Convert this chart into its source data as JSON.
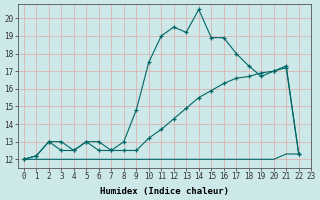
{
  "xlabel": "Humidex (Indice chaleur)",
  "bg_color": "#cde8e8",
  "line_color": "#006666",
  "grid_color": "#ddaaaa",
  "curve1_x": [
    0,
    1,
    2,
    3,
    4,
    5,
    6,
    7,
    8,
    9,
    10,
    11,
    12,
    13,
    14,
    15,
    16,
    17,
    18,
    19,
    20,
    21,
    22
  ],
  "curve1_y": [
    12.0,
    12.2,
    13.0,
    13.0,
    12.5,
    13.0,
    12.5,
    12.5,
    13.0,
    14.8,
    17.5,
    19.0,
    19.5,
    19.2,
    20.5,
    18.9,
    18.9,
    18.0,
    17.3,
    16.7,
    17.0,
    17.3,
    12.3
  ],
  "curve2_x": [
    0,
    1,
    2,
    3,
    4,
    5,
    6,
    7,
    8,
    9,
    10,
    11,
    12,
    13,
    14,
    15,
    16,
    17,
    18,
    19,
    20,
    21,
    22
  ],
  "curve2_y": [
    12.0,
    12.0,
    12.0,
    12.0,
    12.0,
    12.0,
    12.0,
    12.0,
    12.0,
    12.0,
    12.0,
    12.0,
    12.0,
    12.0,
    12.0,
    12.0,
    12.0,
    12.0,
    12.0,
    12.0,
    12.0,
    12.3,
    12.3
  ],
  "curve3_x": [
    0,
    1,
    2,
    3,
    4,
    5,
    6,
    7,
    8,
    9,
    10,
    11,
    12,
    13,
    14,
    15,
    16,
    17,
    18,
    19,
    20,
    21,
    22
  ],
  "curve3_y": [
    12.0,
    12.2,
    13.0,
    12.5,
    12.5,
    13.0,
    13.0,
    12.5,
    12.5,
    12.5,
    13.2,
    13.7,
    14.3,
    14.9,
    15.5,
    15.9,
    16.3,
    16.6,
    16.7,
    16.9,
    17.0,
    17.2,
    12.3
  ],
  "xlim": [
    -0.5,
    23.0
  ],
  "ylim": [
    11.5,
    20.8
  ],
  "yticks": [
    12,
    13,
    14,
    15,
    16,
    17,
    18,
    19,
    20
  ],
  "xticks": [
    0,
    1,
    2,
    3,
    4,
    5,
    6,
    7,
    8,
    9,
    10,
    11,
    12,
    13,
    14,
    15,
    16,
    17,
    18,
    19,
    20,
    21,
    22,
    23
  ]
}
